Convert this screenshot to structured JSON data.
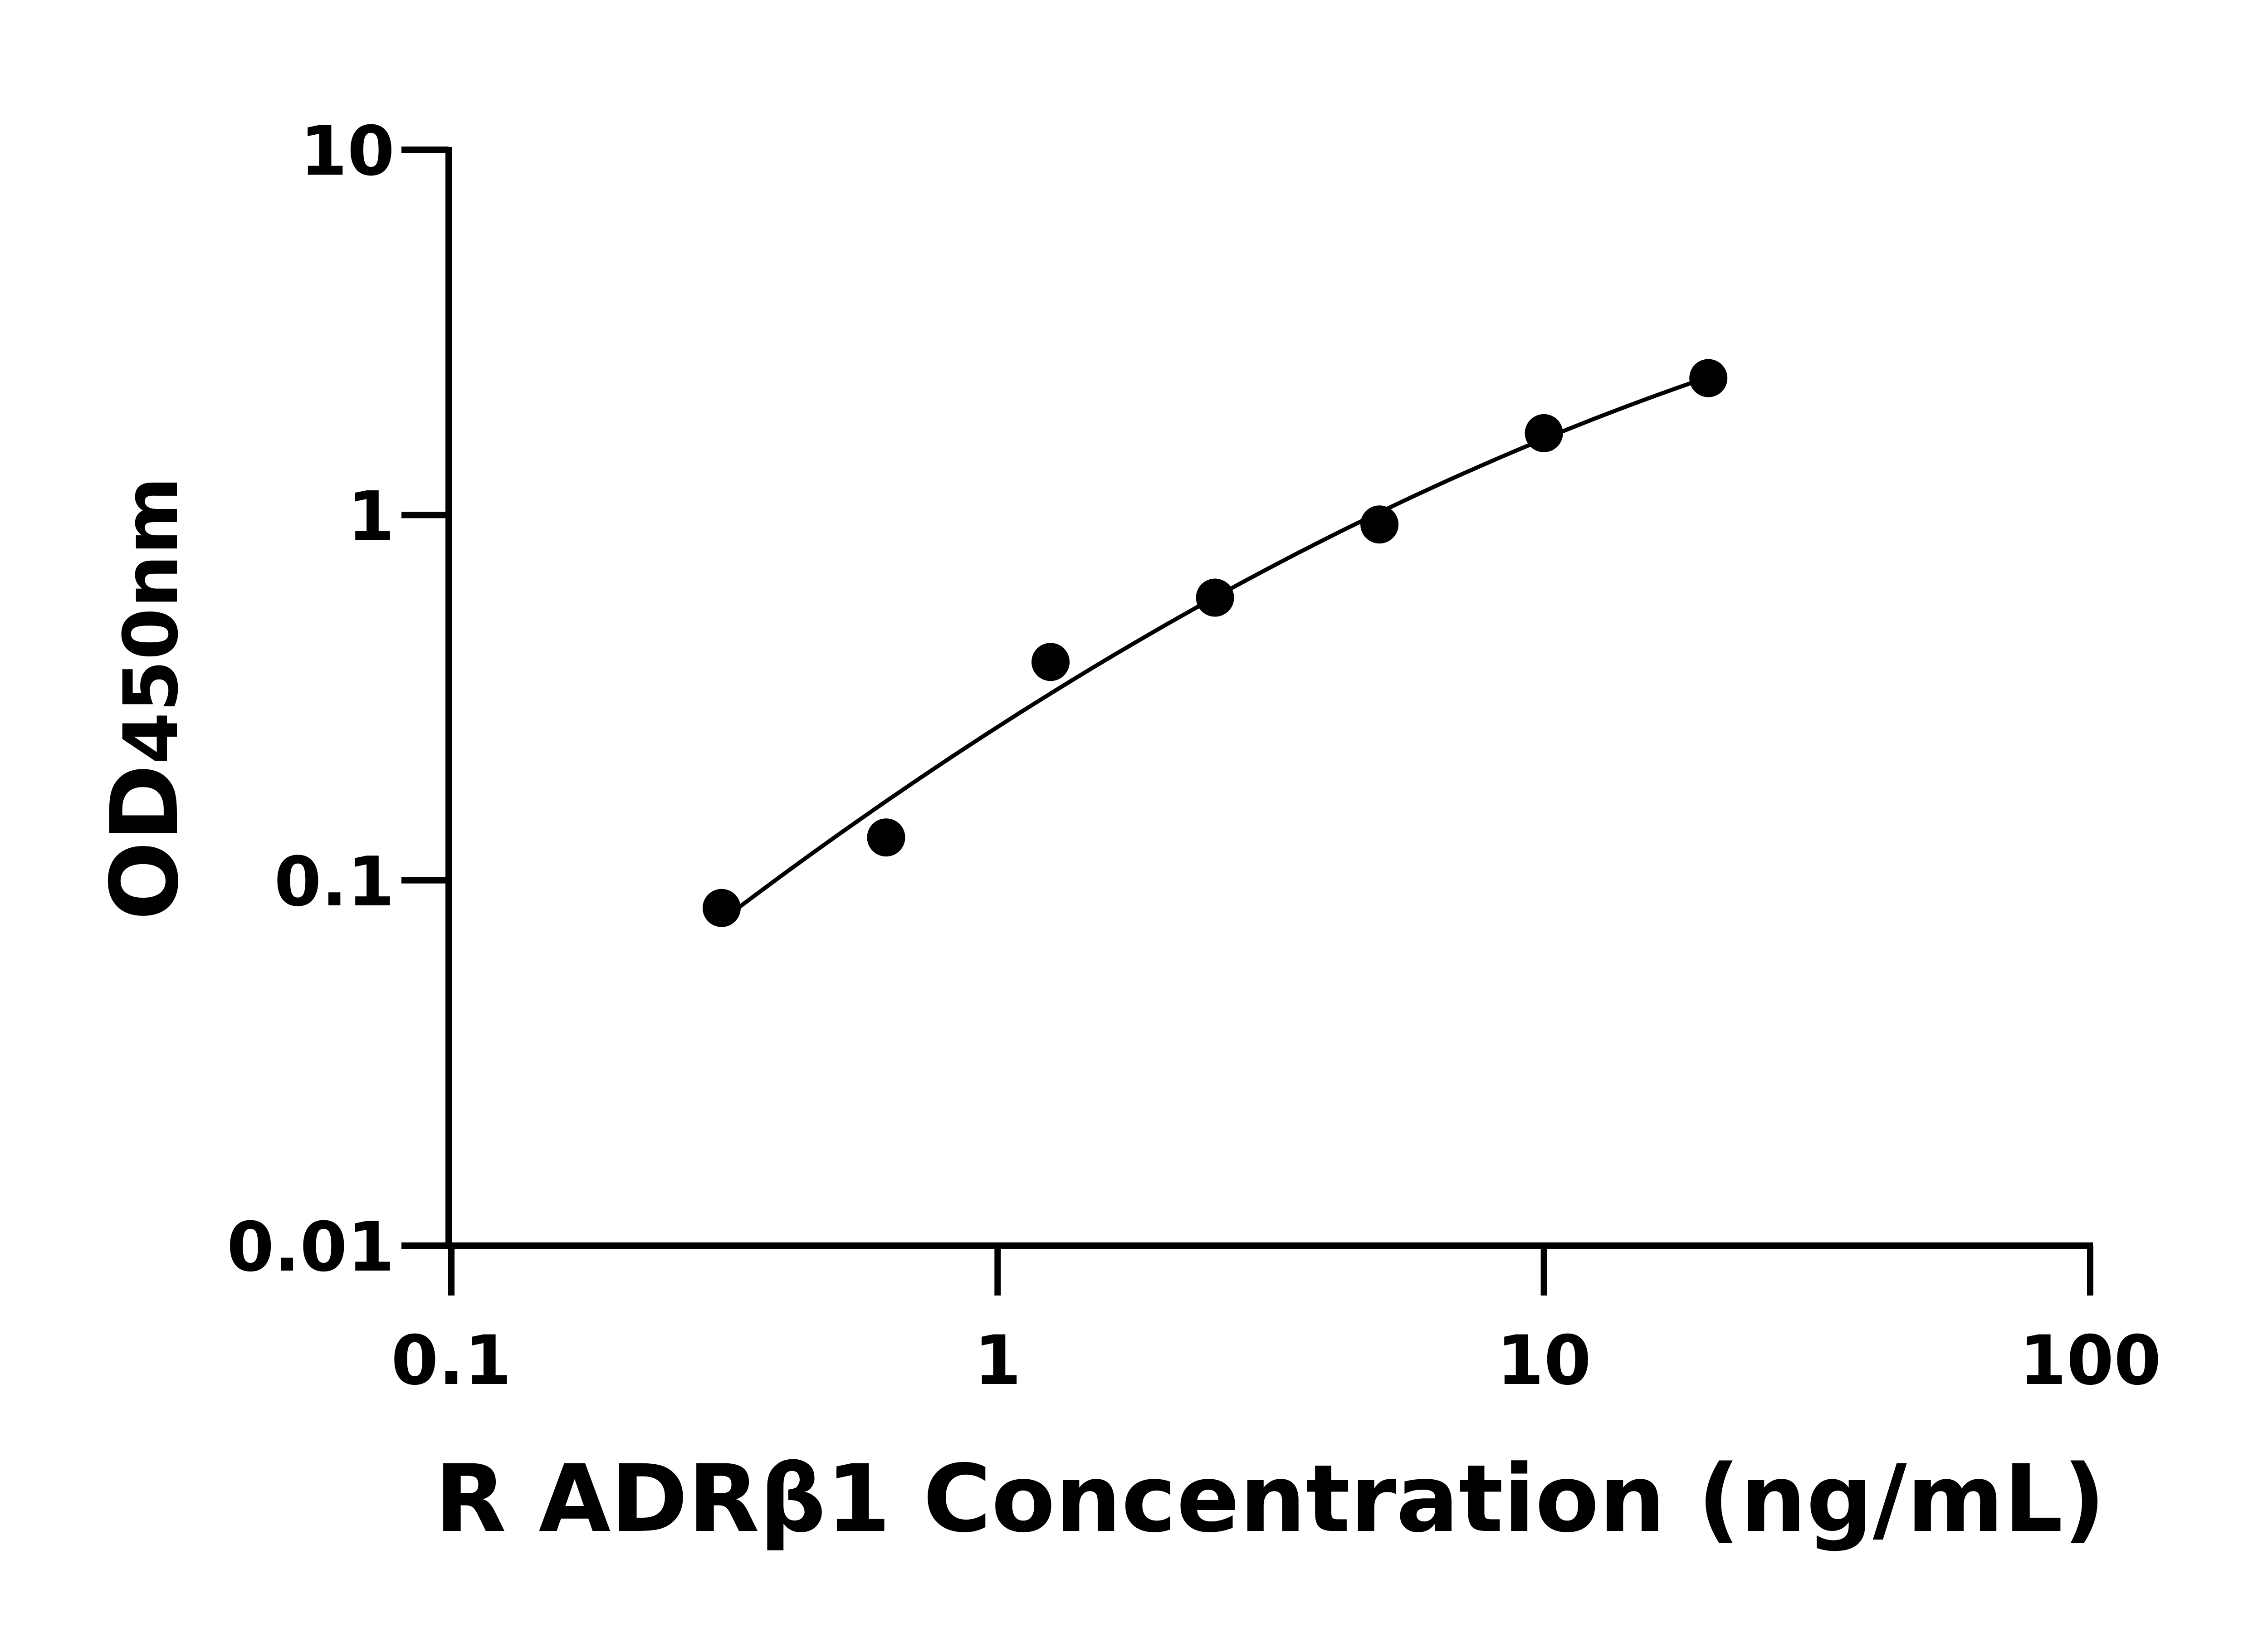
{
  "chart_data": {
    "type": "scatter",
    "xlabel": "R ADRβ1 Concentration (ng/mL)",
    "ylabel": {
      "main": "OD",
      "sub": "450nm"
    },
    "xscale": "log",
    "yscale": "log",
    "xlim": [
      0.1,
      100
    ],
    "ylim": [
      0.01,
      10
    ],
    "xticks": [
      "0.1",
      "1",
      "10",
      "100"
    ],
    "yticks": [
      "0.01",
      "0.1",
      "1",
      "10"
    ],
    "grid": false,
    "fit_curve": true,
    "marker_color": "#000000",
    "points": {
      "x": [
        0.3125,
        0.625,
        1.25,
        2.5,
        5,
        10,
        20
      ],
      "y": [
        0.084,
        0.131,
        0.396,
        0.594,
        0.942,
        1.675,
        2.37
      ]
    }
  }
}
